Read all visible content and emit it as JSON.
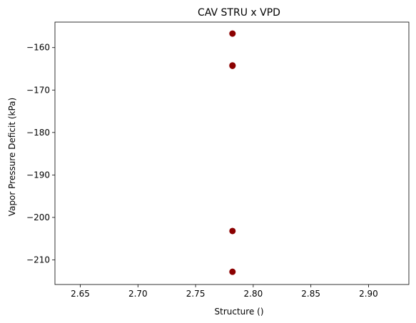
{
  "chart_data": {
    "type": "scatter",
    "title": "CAV STRU x VPD",
    "xlabel": "Structure ()",
    "ylabel": "Vapor Pressure Deficit (kPa)",
    "xlim": [
      2.628,
      2.935
    ],
    "ylim": [
      -215.8,
      -154.0
    ],
    "xticks": [
      2.65,
      2.7,
      2.75,
      2.8,
      2.85,
      2.9
    ],
    "xtick_labels": [
      "2.65",
      "2.70",
      "2.75",
      "2.80",
      "2.85",
      "2.90"
    ],
    "yticks": [
      -210,
      -200,
      -190,
      -180,
      -170,
      -160
    ],
    "ytick_labels": [
      "−210",
      "−200",
      "−190",
      "−180",
      "−170",
      "−160"
    ],
    "grid": false,
    "marker_color": "#8b0000",
    "points": [
      {
        "x": 2.782,
        "y": -156.7
      },
      {
        "x": 2.782,
        "y": -164.2
      },
      {
        "x": 2.782,
        "y": -164.3
      },
      {
        "x": 2.782,
        "y": -203.2
      },
      {
        "x": 2.782,
        "y": -212.8
      }
    ]
  }
}
